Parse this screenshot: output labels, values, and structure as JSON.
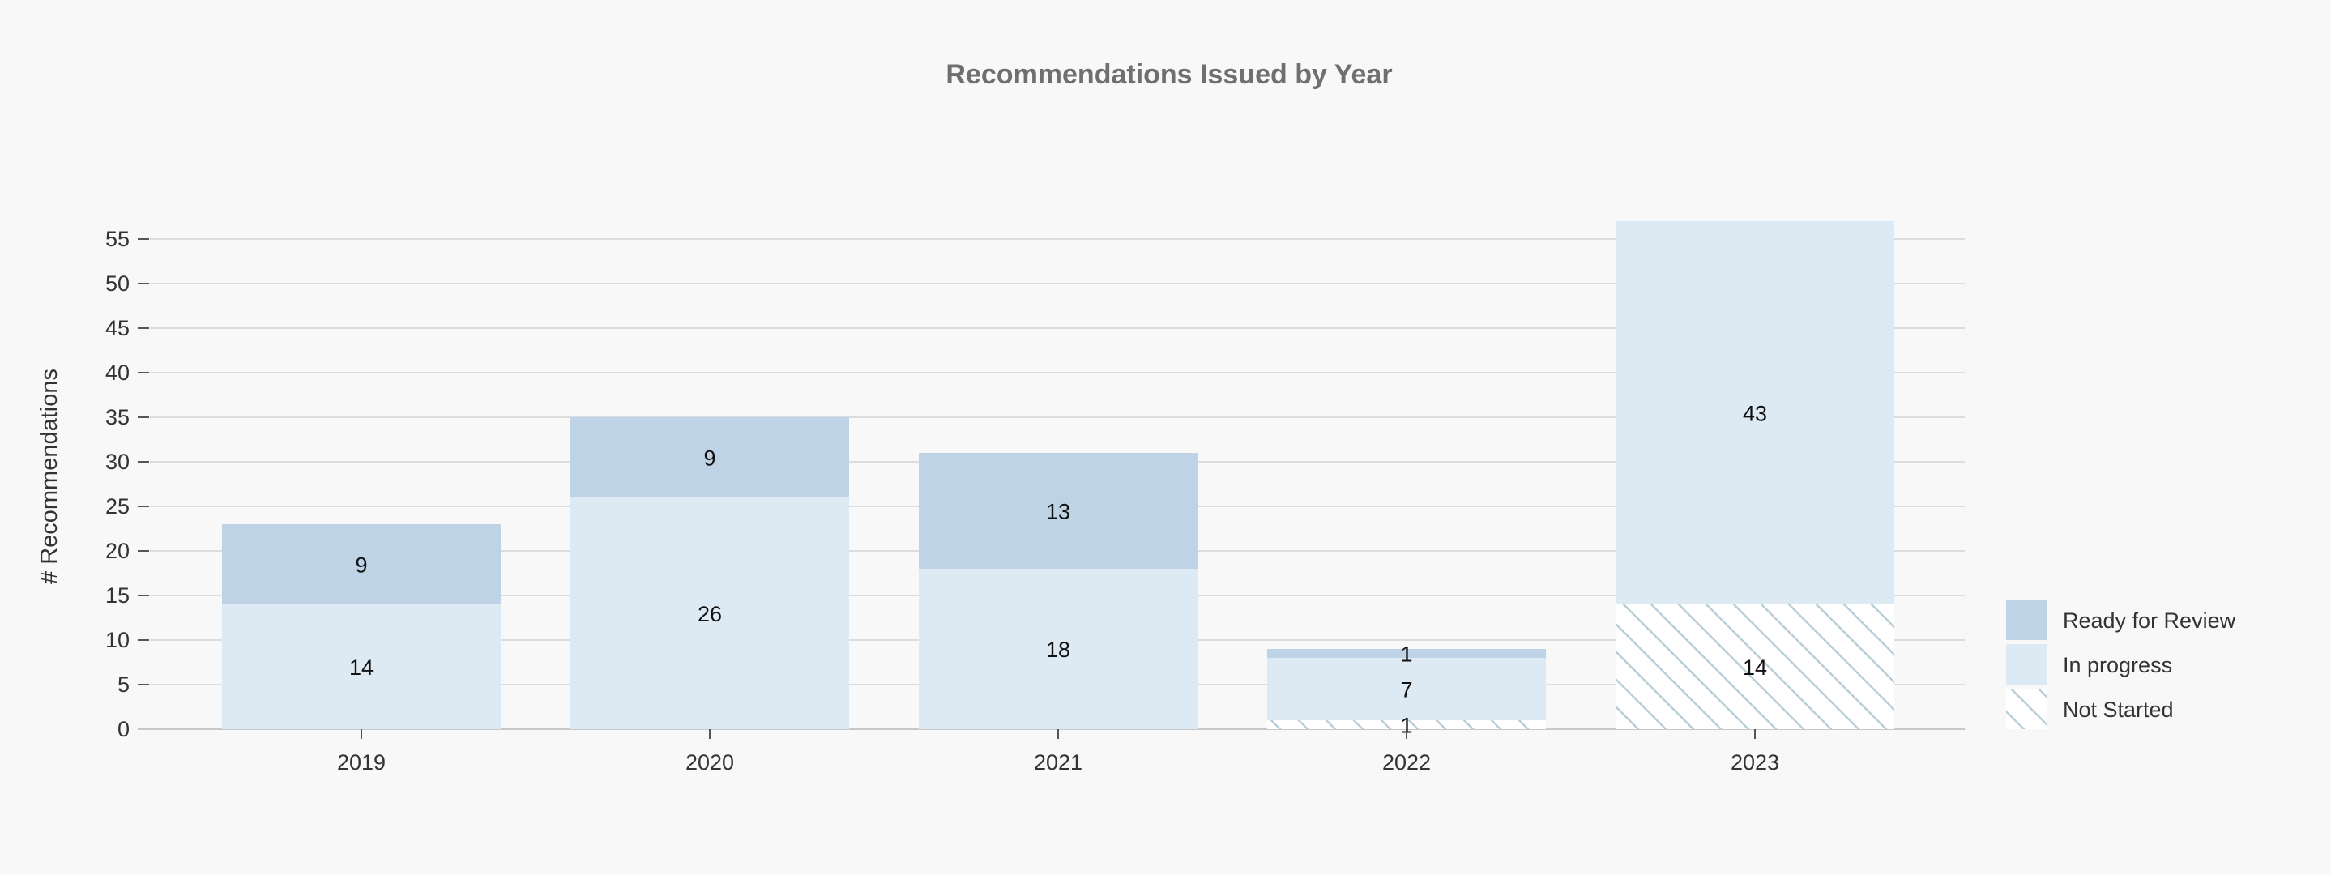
{
  "chart_data": {
    "type": "bar",
    "stacked": true,
    "title": "Recommendations Issued by Year",
    "xlabel": "",
    "ylabel": "# Recommendations",
    "ylim": [
      0,
      57
    ],
    "yticks": [
      0,
      5,
      10,
      15,
      20,
      25,
      30,
      35,
      40,
      45,
      50,
      55
    ],
    "grid": true,
    "legend_position": "right",
    "categories": [
      "2019",
      "2020",
      "2021",
      "2022",
      "2023"
    ],
    "series": [
      {
        "name": "Not Started",
        "values": [
          0,
          0,
          0,
          1,
          14
        ],
        "labels": [
          "",
          "",
          "",
          "1",
          "14"
        ],
        "color": "#ffffff",
        "pattern": "hatch",
        "hatch_color": "#b9cfd8"
      },
      {
        "name": "In progress",
        "values": [
          14,
          26,
          18,
          7,
          43
        ],
        "labels": [
          "14",
          "26",
          "18",
          "7",
          "43"
        ],
        "color": "#deeaf3"
      },
      {
        "name": "Ready for Review",
        "values": [
          9,
          9,
          13,
          1,
          0
        ],
        "labels": [
          "9",
          "9",
          "13",
          "1",
          ""
        ],
        "color": "#bfd3e6"
      }
    ]
  }
}
